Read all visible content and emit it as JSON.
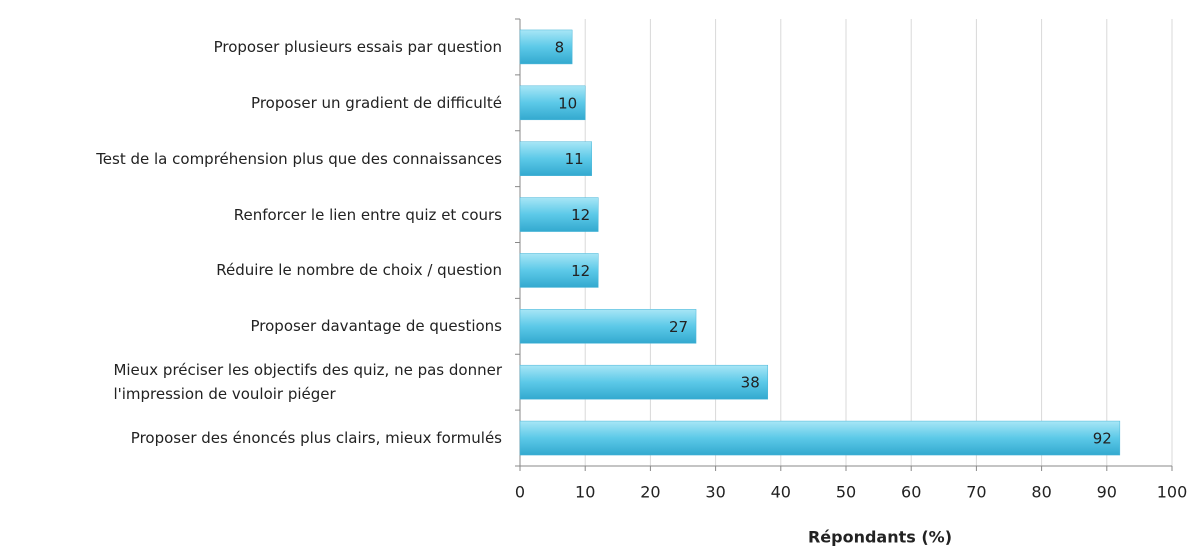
{
  "chart_data": {
    "type": "bar",
    "orientation": "horizontal",
    "categories": [
      "Proposer plusieurs essais par question",
      "Proposer un gradient de difficulté",
      "Test de la compréhension plus que des connaissances",
      "Renforcer le lien entre quiz et cours",
      "Réduire le nombre de choix / question",
      "Proposer davantage de questions",
      "Mieux préciser les objectifs des quiz, ne pas donner\nl'impression de vouloir piéger",
      "Proposer des énoncés plus clairs, mieux formulés"
    ],
    "values": [
      8,
      10,
      11,
      12,
      12,
      27,
      38,
      92
    ],
    "color": "#5cc9e8",
    "xlim": [
      0,
      100
    ],
    "xticks": [
      0,
      10,
      20,
      30,
      40,
      50,
      60,
      70,
      80,
      90,
      100
    ],
    "x_label": "Répondants (%)",
    "grid": true
  }
}
